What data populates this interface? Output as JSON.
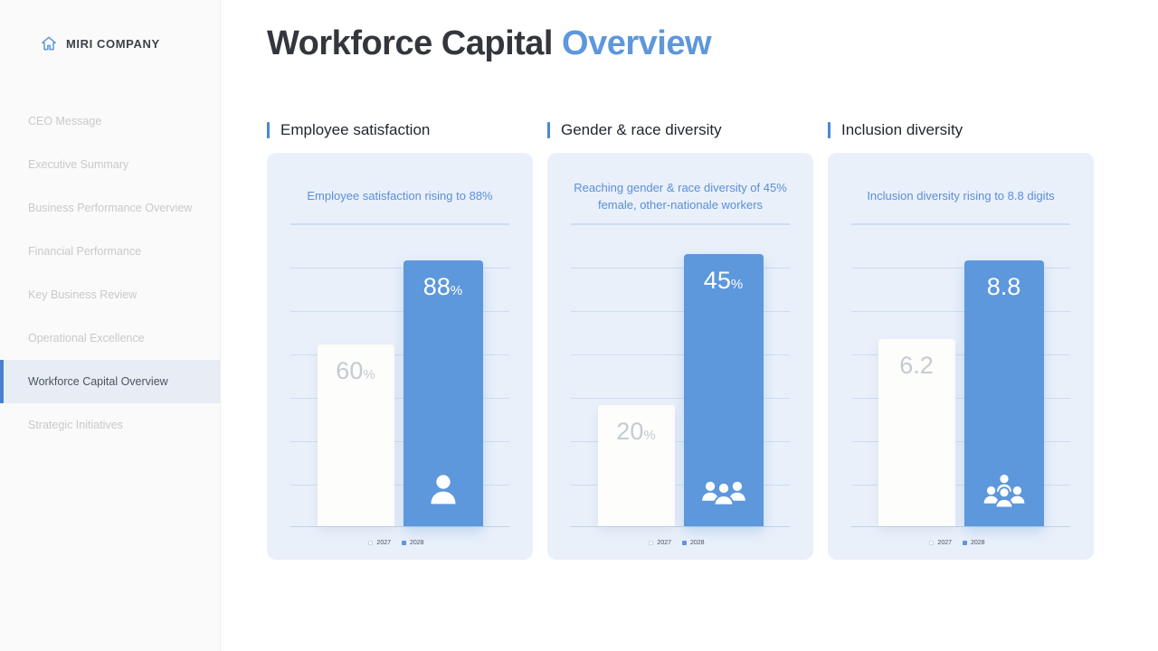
{
  "sidebar": {
    "company": "MIRI COMPANY",
    "logo_icon": "home-icon",
    "items": [
      {
        "label": "CEO Message",
        "active": false
      },
      {
        "label": "Executive Summary",
        "active": false
      },
      {
        "label": "Business Performance Overview",
        "active": false
      },
      {
        "label": "Financial Performance",
        "active": false
      },
      {
        "label": "Key Business Review",
        "active": false
      },
      {
        "label": "Operational Excellence",
        "active": false
      },
      {
        "label": "Workforce Capital Overview",
        "active": true
      },
      {
        "label": "Strategic Initiatives",
        "active": false
      }
    ]
  },
  "header": {
    "title_main": "Workforce Capital",
    "title_accent": "Overview"
  },
  "colors": {
    "accent_blue": "#5d97dc",
    "card_background": "#e9f0fa",
    "active_nav_background": "#e7ecf5",
    "caption_blue": "#5b8fd6"
  },
  "chart_data": [
    {
      "type": "bar",
      "section_title": "Employee satisfaction",
      "caption": "Employee satisfaction rising to 88%",
      "categories": [
        "2027",
        "2028"
      ],
      "values": [
        60,
        88
      ],
      "ymax": 100,
      "legend": [
        "2027",
        "2028"
      ],
      "legend_position": "bottom",
      "grid": true,
      "icon": "person-icon",
      "bars": [
        {
          "year": "2027",
          "label": "60",
          "unit": "%"
        },
        {
          "year": "2028",
          "label": "88",
          "unit": "%"
        }
      ]
    },
    {
      "type": "bar",
      "section_title": "Gender & race diversity",
      "caption": "Reaching gender & race diversity of 45% female, other-nationale workers",
      "categories": [
        "2027",
        "2028"
      ],
      "values": [
        20,
        45
      ],
      "ymax": 50,
      "legend": [
        "2027",
        "2028"
      ],
      "legend_position": "bottom",
      "grid": true,
      "icon": "people-group-icon",
      "bars": [
        {
          "year": "2027",
          "label": "20",
          "unit": "%"
        },
        {
          "year": "2028",
          "label": "45",
          "unit": "%"
        }
      ]
    },
    {
      "type": "bar",
      "section_title": "Inclusion diversity",
      "caption": "Inclusion diversity rising to 8.8 digits",
      "categories": [
        "2027",
        "2028"
      ],
      "values": [
        6.2,
        8.8
      ],
      "ymax": 10,
      "legend": [
        "2027",
        "2028"
      ],
      "legend_position": "bottom",
      "grid": true,
      "icon": "people-group-icon",
      "bars": [
        {
          "year": "2027",
          "label": "6.2",
          "unit": ""
        },
        {
          "year": "2028",
          "label": "8.8",
          "unit": ""
        }
      ]
    }
  ]
}
